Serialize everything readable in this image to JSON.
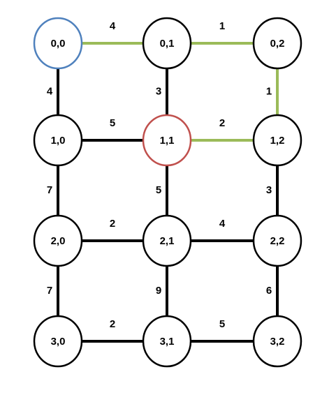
{
  "colors": {
    "default_edge": "#000000",
    "highlight_edge": "#9bbb59",
    "default_node_border": "#000000",
    "start_node_border": "#4f81bd",
    "current_node_border": "#c0504d",
    "node_fill": "#ffffff",
    "text": "#000000"
  },
  "nodes": [
    {
      "id": "0,0",
      "label": "0,0",
      "row": 0,
      "col": 0,
      "state": "start"
    },
    {
      "id": "0,1",
      "label": "0,1",
      "row": 0,
      "col": 1,
      "state": "default"
    },
    {
      "id": "0,2",
      "label": "0,2",
      "row": 0,
      "col": 2,
      "state": "default"
    },
    {
      "id": "1,0",
      "label": "1,0",
      "row": 1,
      "col": 0,
      "state": "default"
    },
    {
      "id": "1,1",
      "label": "1,1",
      "row": 1,
      "col": 1,
      "state": "current"
    },
    {
      "id": "1,2",
      "label": "1,2",
      "row": 1,
      "col": 2,
      "state": "default"
    },
    {
      "id": "2,0",
      "label": "2,0",
      "row": 2,
      "col": 0,
      "state": "default"
    },
    {
      "id": "2,1",
      "label": "2,1",
      "row": 2,
      "col": 1,
      "state": "default"
    },
    {
      "id": "2,2",
      "label": "2,2",
      "row": 2,
      "col": 2,
      "state": "default"
    },
    {
      "id": "3,0",
      "label": "3,0",
      "row": 3,
      "col": 0,
      "state": "default"
    },
    {
      "id": "3,1",
      "label": "3,1",
      "row": 3,
      "col": 1,
      "state": "default"
    },
    {
      "id": "3,2",
      "label": "3,2",
      "row": 3,
      "col": 2,
      "state": "default"
    }
  ],
  "edges": [
    {
      "from": "0,0",
      "to": "0,1",
      "weight": "4",
      "highlight": true
    },
    {
      "from": "0,1",
      "to": "0,2",
      "weight": "1",
      "highlight": true
    },
    {
      "from": "1,0",
      "to": "1,1",
      "weight": "5",
      "highlight": false
    },
    {
      "from": "1,1",
      "to": "1,2",
      "weight": "2",
      "highlight": true
    },
    {
      "from": "2,0",
      "to": "2,1",
      "weight": "2",
      "highlight": false
    },
    {
      "from": "2,1",
      "to": "2,2",
      "weight": "4",
      "highlight": false
    },
    {
      "from": "3,0",
      "to": "3,1",
      "weight": "2",
      "highlight": false
    },
    {
      "from": "3,1",
      "to": "3,2",
      "weight": "5",
      "highlight": false
    },
    {
      "from": "0,0",
      "to": "1,0",
      "weight": "4",
      "highlight": false
    },
    {
      "from": "1,0",
      "to": "2,0",
      "weight": "7",
      "highlight": false
    },
    {
      "from": "2,0",
      "to": "3,0",
      "weight": "7",
      "highlight": false
    },
    {
      "from": "0,1",
      "to": "1,1",
      "weight": "3",
      "highlight": false
    },
    {
      "from": "1,1",
      "to": "2,1",
      "weight": "5",
      "highlight": false
    },
    {
      "from": "2,1",
      "to": "3,1",
      "weight": "9",
      "highlight": false
    },
    {
      "from": "0,2",
      "to": "1,2",
      "weight": "1",
      "highlight": true
    },
    {
      "from": "1,2",
      "to": "2,2",
      "weight": "3",
      "highlight": false
    },
    {
      "from": "2,2",
      "to": "3,2",
      "weight": "6",
      "highlight": false
    }
  ]
}
